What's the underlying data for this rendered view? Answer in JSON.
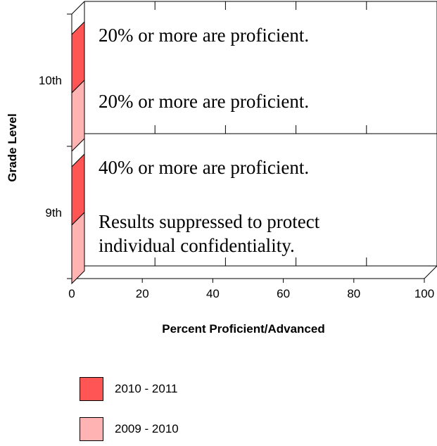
{
  "chart_data": {
    "type": "bar",
    "orientation": "horizontal",
    "categories": [
      "10th",
      "9th"
    ],
    "series": [
      {
        "name": "2010 - 2011",
        "values": [
          null,
          null
        ],
        "color": "#ff5555"
      },
      {
        "name": "2009 - 2010",
        "values": [
          null,
          null
        ],
        "color": "#ffb3b3"
      }
    ],
    "annotations": [
      {
        "category": "10th",
        "series": "2010 - 2011",
        "lines": [
          "20% or more are proficient."
        ]
      },
      {
        "category": "10th",
        "series": "2009 - 2010",
        "lines": [
          "20% or more are proficient."
        ]
      },
      {
        "category": "9th",
        "series": "2010 - 2011",
        "lines": [
          "40% or more are proficient."
        ]
      },
      {
        "category": "9th",
        "series": "2009 - 2010",
        "lines": [
          "Results suppressed to protect",
          "individual confidentiality."
        ]
      }
    ],
    "xlabel": "Percent Proficient/Advanced",
    "ylabel": "Grade Level",
    "xlim": [
      0,
      100
    ],
    "xticks": [
      "0",
      "20",
      "40",
      "60",
      "80",
      "100"
    ],
    "grid": false,
    "legend_position": "bottom-left"
  },
  "legend": [
    {
      "label": "2010 - 2011",
      "color": "#ff5555"
    },
    {
      "label": "2009 - 2010",
      "color": "#ffb3b3"
    }
  ]
}
